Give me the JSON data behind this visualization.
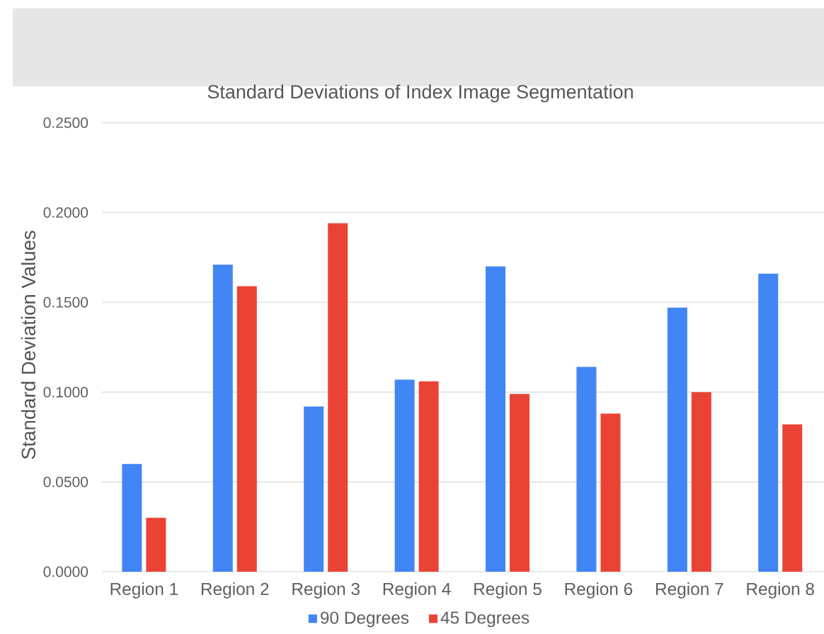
{
  "chart_data": {
    "type": "bar",
    "title": "Standard Deviations of Index Image Segmentation",
    "ylabel": "Standard Deviation Values",
    "categories": [
      "Region 1",
      "Region 2",
      "Region 3",
      "Region 4",
      "Region 5",
      "Region 6",
      "Region 7",
      "Region 8"
    ],
    "series": [
      {
        "name": "90 Degrees",
        "color": "#4285f4",
        "values": [
          0.06,
          0.171,
          0.092,
          0.107,
          0.17,
          0.114,
          0.147,
          0.166
        ]
      },
      {
        "name": "45 Degrees",
        "color": "#ea4335",
        "values": [
          0.03,
          0.159,
          0.194,
          0.106,
          0.099,
          0.088,
          0.1,
          0.082
        ]
      }
    ],
    "ylim": [
      0,
      0.25
    ],
    "yticks": [
      {
        "value": 0,
        "label": "0.0000"
      },
      {
        "value": 0.05,
        "label": "0.0500"
      },
      {
        "value": 0.1,
        "label": "0.1000"
      },
      {
        "value": 0.15,
        "label": "0.1500"
      },
      {
        "value": 0.2,
        "label": "0.2000"
      },
      {
        "value": 0.25,
        "label": "0.2500"
      }
    ],
    "grid": "y",
    "legend": "bottom"
  }
}
